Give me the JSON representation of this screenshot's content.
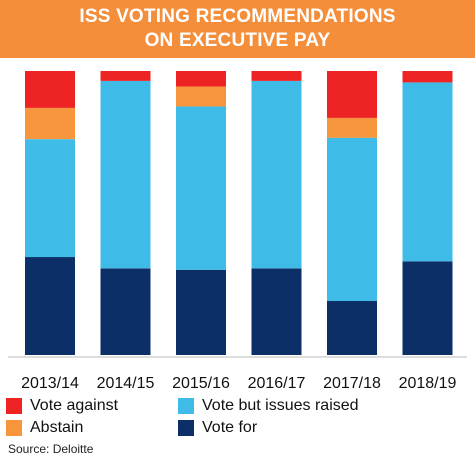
{
  "chart_data": {
    "type": "bar",
    "stacked": true,
    "title_lines": [
      "ISS VOTING RECOMMENDATIONS",
      "ON EXECUTIVE PAY"
    ],
    "categories": [
      "2013/14",
      "2014/15",
      "2015/16",
      "2016/17",
      "2017/18",
      "2018/19"
    ],
    "series": [
      {
        "name": "Vote for",
        "color": "#0b2f66",
        "values": [
          34.5,
          30.5,
          30,
          30.5,
          19,
          33
        ]
      },
      {
        "name": "Vote but issues raised",
        "color": "#3fbbe8",
        "values": [
          41.5,
          66,
          57.5,
          66,
          57.5,
          63
        ]
      },
      {
        "name": "Abstain",
        "color": "#f7963d",
        "values": [
          11,
          0,
          7,
          0,
          7,
          0
        ]
      },
      {
        "name": "Vote against",
        "color": "#ee2424",
        "values": [
          13,
          3.5,
          5.5,
          3.5,
          16.5,
          4
        ]
      }
    ],
    "ylim": [
      0,
      100
    ],
    "legend_position": "bottom",
    "grid": false
  },
  "source": "Source: Deloitte"
}
